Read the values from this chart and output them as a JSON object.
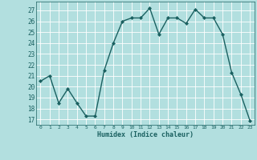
{
  "x": [
    0,
    1,
    2,
    3,
    4,
    5,
    6,
    7,
    8,
    9,
    10,
    11,
    12,
    13,
    14,
    15,
    16,
    17,
    18,
    19,
    20,
    21,
    22,
    23
  ],
  "y": [
    20.5,
    21.0,
    18.5,
    19.8,
    18.5,
    17.3,
    17.3,
    21.5,
    24.0,
    26.0,
    26.3,
    26.3,
    27.2,
    24.8,
    26.3,
    26.3,
    25.8,
    27.1,
    26.3,
    26.3,
    24.8,
    21.3,
    19.3,
    16.9
  ],
  "xlabel": "Humidex (Indice chaleur)",
  "ylabel_ticks": [
    17,
    18,
    19,
    20,
    21,
    22,
    23,
    24,
    25,
    26,
    27
  ],
  "ylim": [
    16.5,
    27.8
  ],
  "xlim": [
    -0.5,
    23.5
  ],
  "bg_color": "#b2dfdf",
  "grid_color": "#e8f8f8",
  "line_color": "#1a6060",
  "marker_color": "#1a6060",
  "tick_color": "#1a6060",
  "xlabel_color": "#1a6060"
}
